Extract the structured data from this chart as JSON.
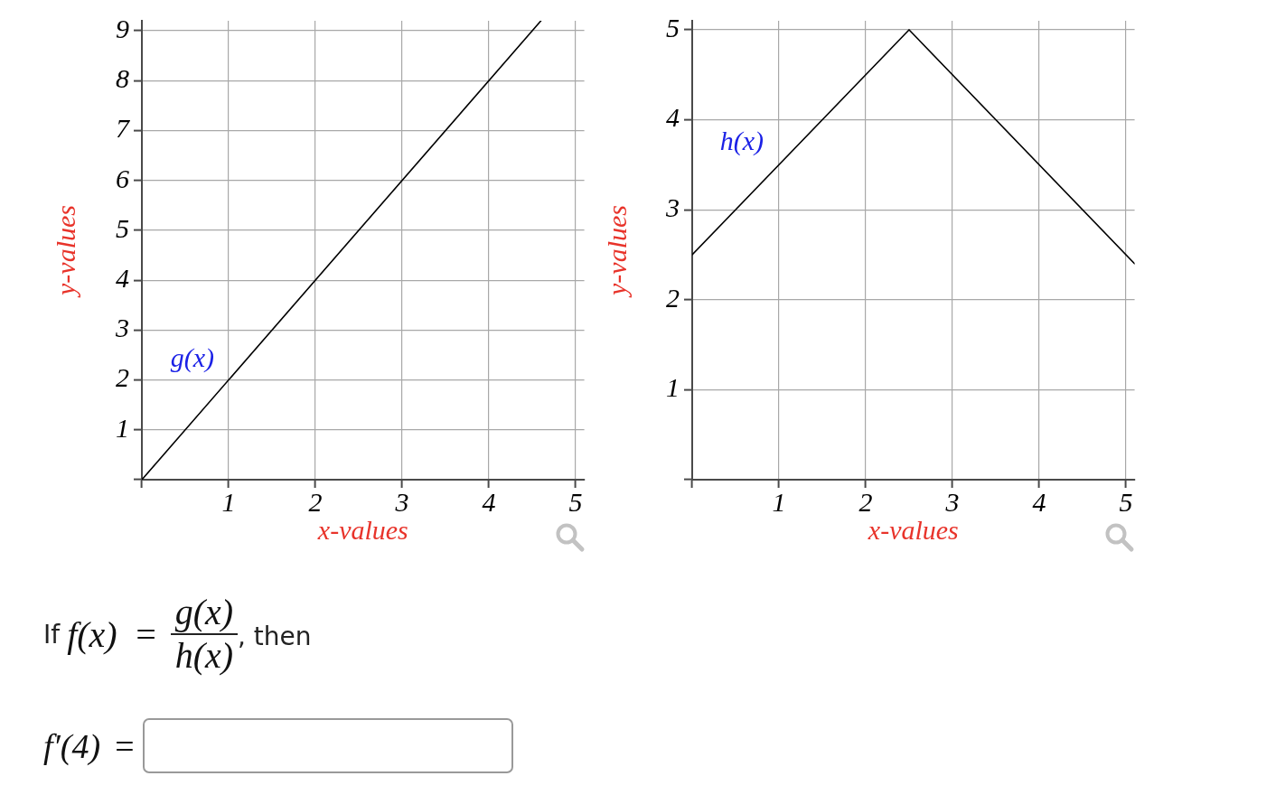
{
  "chart_data": [
    {
      "type": "line",
      "xlabel": "x-values",
      "ylabel": "y-values",
      "x": [
        0,
        4.6
      ],
      "values": [
        0,
        9.2
      ],
      "color": "#000000",
      "xlim": [
        0,
        5.1
      ],
      "ylim": [
        0,
        9.2
      ],
      "xticks": [
        {
          "value": 0,
          "label": null
        },
        1,
        2,
        3,
        4,
        5
      ],
      "yticks": [
        {
          "value": 0,
          "label": null
        },
        1,
        2,
        3,
        4,
        5,
        6,
        7,
        8,
        9
      ],
      "grid": true,
      "annotations": [
        "g(x)"
      ]
    },
    {
      "type": "line",
      "xlabel": "x-values",
      "ylabel": "y-values",
      "x": [
        0,
        2.5,
        5.1
      ],
      "values": [
        2.5,
        5,
        2.4
      ],
      "color": "#000000",
      "xlim": [
        0,
        5.1
      ],
      "ylim": [
        0,
        5.1
      ],
      "xticks": [
        {
          "value": 0,
          "label": null
        },
        1,
        2,
        3,
        4,
        5
      ],
      "yticks": [
        {
          "value": 0,
          "label": null
        },
        1,
        2,
        3,
        4,
        5
      ],
      "grid": true,
      "annotations": [
        "h(x)"
      ]
    },
    {
      "type": "other",
      "annotations": [
        "If",
        "f(x) =",
        "g(x)",
        "h(x)",
        ", then",
        "f′(4) ="
      ]
    }
  ]
}
